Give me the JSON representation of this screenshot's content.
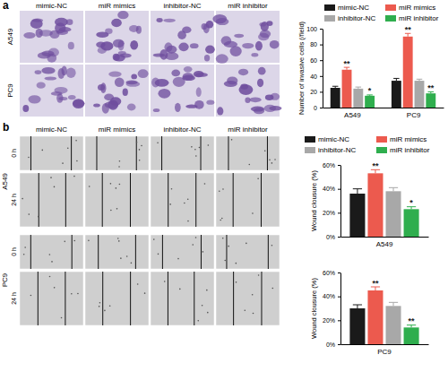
{
  "figure": {
    "panels": [
      {
        "label": "a",
        "columns": [
          "mimic-NC",
          "miR mimics",
          "inhibitor-NC",
          "miR inhibitor"
        ],
        "rows": [
          "A549",
          "PC9"
        ]
      },
      {
        "label": "b",
        "columns": [
          "mimic-NC",
          "miR mimics",
          "inhibitor-NC",
          "miR inhibitor"
        ],
        "rows": [
          "A549",
          "PC9"
        ],
        "times": [
          "0 h",
          "24 h"
        ]
      }
    ]
  },
  "chart_data": [
    {
      "type": "bar",
      "y_label": "Number of invasive cells (/field)",
      "categories": [
        "A549",
        "PC9"
      ],
      "series": [
        {
          "name": "mimic-NC",
          "color": "#1a1a1a",
          "values": [
            25,
            34
          ],
          "errors": [
            2,
            3
          ],
          "annotations": [
            null,
            null
          ]
        },
        {
          "name": "miR mimics",
          "color": "#ec5a4e",
          "values": [
            48,
            90
          ],
          "errors": [
            3,
            4
          ],
          "annotations": [
            "**",
            "**"
          ]
        },
        {
          "name": "inhibitor-NC",
          "color": "#a8a8a8",
          "values": [
            24,
            34
          ],
          "errors": [
            2,
            2
          ],
          "annotations": [
            null,
            null
          ]
        },
        {
          "name": "miR inhibitor",
          "color": "#2fae4e",
          "values": [
            15,
            18
          ],
          "errors": [
            1,
            2
          ],
          "annotations": [
            "*",
            "**"
          ]
        }
      ],
      "ylim": [
        0,
        100
      ],
      "yticks": [
        0,
        20,
        40,
        60,
        80,
        100
      ],
      "legend": "top",
      "grid": false
    },
    {
      "type": "bar",
      "y_label": "Wound clousure (%)",
      "categories": [
        "A549"
      ],
      "series": [
        {
          "name": "mimic-NC",
          "color": "#1a1a1a",
          "values": [
            36
          ],
          "errors": [
            4
          ],
          "annotations": [
            null
          ]
        },
        {
          "name": "miR mimics",
          "color": "#ec5a4e",
          "values": [
            53
          ],
          "errors": [
            3
          ],
          "annotations": [
            "**"
          ]
        },
        {
          "name": "inhibitor-NC",
          "color": "#a8a8a8",
          "values": [
            38
          ],
          "errors": [
            3
          ],
          "annotations": [
            null
          ]
        },
        {
          "name": "miR inhibitor",
          "color": "#2fae4e",
          "values": [
            23
          ],
          "errors": [
            2
          ],
          "annotations": [
            "*"
          ]
        }
      ],
      "ylim": [
        0,
        60
      ],
      "yticks": [
        {
          "value": 0,
          "label": "0%"
        },
        {
          "value": 20,
          "label": "20%"
        },
        {
          "value": 40,
          "label": "40%"
        },
        {
          "value": 60,
          "label": "60%"
        }
      ],
      "legend": "top",
      "grid": false
    },
    {
      "type": "bar",
      "y_label": "Wound clousure (%)",
      "categories": [
        "PC9"
      ],
      "series": [
        {
          "color": "#1a1a1a",
          "values": [
            30
          ],
          "errors": [
            3
          ],
          "annotations": [
            null
          ]
        },
        {
          "color": "#ec5a4e",
          "values": [
            45
          ],
          "errors": [
            3
          ],
          "annotations": [
            "**"
          ]
        },
        {
          "color": "#a8a8a8",
          "values": [
            32
          ],
          "errors": [
            3
          ],
          "annotations": [
            null
          ]
        },
        {
          "color": "#2fae4e",
          "values": [
            14
          ],
          "errors": [
            2
          ],
          "annotations": [
            "**"
          ]
        }
      ],
      "ylim": [
        0,
        60
      ],
      "yticks": [
        {
          "value": 0,
          "label": "0%"
        },
        {
          "value": 20,
          "label": "20%"
        },
        {
          "value": 40,
          "label": "40%"
        },
        {
          "value": 60,
          "label": "60%"
        }
      ],
      "grid": false
    }
  ]
}
